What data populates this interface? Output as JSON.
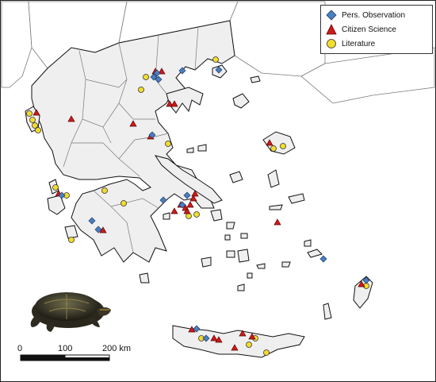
{
  "legend": {
    "items": [
      {
        "label": "Pers. Observation",
        "shape": "diamond",
        "color": "#4a7fc1"
      },
      {
        "label": "Citizen Science",
        "shape": "triangle",
        "color": "#cc1b1b"
      },
      {
        "label": "Literature",
        "shape": "circle",
        "color": "#f2dc2c"
      }
    ]
  },
  "scale_bar": {
    "labels": [
      "0",
      "100",
      "200 km"
    ]
  },
  "colors": {
    "land": "#efefef",
    "coast": "#111111",
    "border": "#7a7a7a",
    "sea": "#ffffff"
  },
  "icons": {
    "photo": "turtle-photo-icon"
  }
}
